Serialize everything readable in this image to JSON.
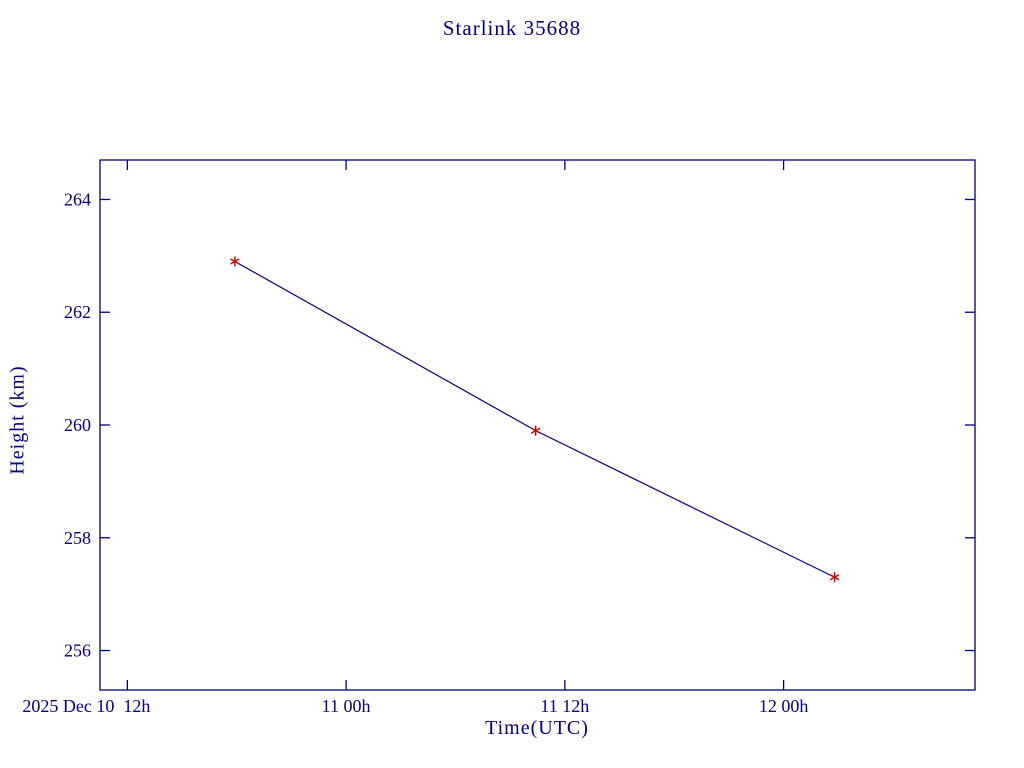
{
  "page": {
    "background": "#ffffff"
  },
  "chart_data": {
    "type": "line",
    "title": "Starlink 35688",
    "xlabel": "Time(UTC)",
    "ylabel": "Height (km)",
    "axis_color": "#000080",
    "text_color": "#000080",
    "grid": false,
    "legend": "none",
    "x_reference": "hours after first x tick (2025 Dec 10 12h UTC)",
    "xlim_hours": [
      -1.5,
      46.5
    ],
    "ylim": [
      255.3,
      264.7
    ],
    "xticks": [
      {
        "hours": 0,
        "label": "2025 Dec 10  12h",
        "label_dx": -41
      },
      {
        "hours": 12,
        "label": "11 00h",
        "label_dx": 0
      },
      {
        "hours": 24,
        "label": "11 12h",
        "label_dx": 0
      },
      {
        "hours": 36,
        "label": "12 00h",
        "label_dx": 0
      }
    ],
    "yticks": [
      256,
      258,
      260,
      262,
      264
    ],
    "series": [
      {
        "name": "height",
        "line_color": "#000080",
        "marker": "asterisk",
        "marker_color": "#cc0000",
        "points": [
          {
            "hours": 5.9,
            "height_km": 262.9
          },
          {
            "hours": 22.4,
            "height_km": 259.9
          },
          {
            "hours": 38.8,
            "height_km": 257.3
          }
        ]
      }
    ]
  }
}
